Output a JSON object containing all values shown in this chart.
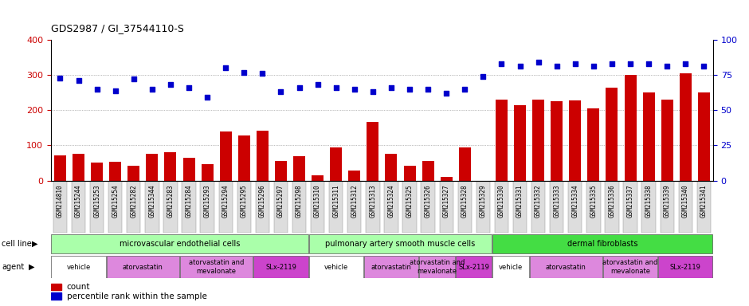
{
  "title": "GDS2987 / GI_37544110-S",
  "samples": [
    "GSM214810",
    "GSM215244",
    "GSM215253",
    "GSM215254",
    "GSM215282",
    "GSM215344",
    "GSM215283",
    "GSM215284",
    "GSM215293",
    "GSM215294",
    "GSM215295",
    "GSM215296",
    "GSM215297",
    "GSM215298",
    "GSM215310",
    "GSM215311",
    "GSM215312",
    "GSM215313",
    "GSM215324",
    "GSM215325",
    "GSM215326",
    "GSM215327",
    "GSM215328",
    "GSM215329",
    "GSM215330",
    "GSM215331",
    "GSM215332",
    "GSM215333",
    "GSM215334",
    "GSM215335",
    "GSM215336",
    "GSM215337",
    "GSM215338",
    "GSM215339",
    "GSM215340",
    "GSM215341"
  ],
  "counts": [
    72,
    75,
    50,
    53,
    42,
    75,
    80,
    65,
    47,
    140,
    128,
    142,
    55,
    70,
    15,
    93,
    28,
    167,
    75,
    43,
    55,
    10,
    95,
    0,
    230,
    215,
    230,
    225,
    228,
    205,
    265,
    300,
    250,
    230,
    305,
    250
  ],
  "percentile_ranks_pct": [
    73,
    71,
    65,
    64,
    72,
    65,
    68,
    66,
    59,
    80,
    77,
    76,
    63,
    66,
    68,
    66,
    65,
    63,
    66,
    65,
    65,
    62,
    65,
    74,
    83,
    81,
    84,
    81,
    83,
    81,
    83,
    83,
    83,
    81,
    83,
    81
  ],
  "cell_line_groups": [
    {
      "label": "microvascular endothelial cells",
      "start": 0,
      "end": 14,
      "color": "#AAFFAA"
    },
    {
      "label": "pulmonary artery smooth muscle cells",
      "start": 14,
      "end": 24,
      "color": "#AAFFAA"
    },
    {
      "label": "dermal fibroblasts",
      "start": 24,
      "end": 36,
      "color": "#44DD44"
    }
  ],
  "agent_groups": [
    {
      "label": "vehicle",
      "start": 0,
      "end": 3,
      "color": "#FFFFFF"
    },
    {
      "label": "atorvastatin",
      "start": 3,
      "end": 7,
      "color": "#DD88DD"
    },
    {
      "label": "atorvastatin and\nmevalonate",
      "start": 7,
      "end": 11,
      "color": "#DD88DD"
    },
    {
      "label": "SLx-2119",
      "start": 11,
      "end": 14,
      "color": "#CC44CC"
    },
    {
      "label": "vehicle",
      "start": 14,
      "end": 17,
      "color": "#FFFFFF"
    },
    {
      "label": "atorvastatin",
      "start": 17,
      "end": 20,
      "color": "#DD88DD"
    },
    {
      "label": "atorvastatin and\nmevalonate",
      "start": 20,
      "end": 22,
      "color": "#DD88DD"
    },
    {
      "label": "SLx-2119",
      "start": 22,
      "end": 24,
      "color": "#CC44CC"
    },
    {
      "label": "vehicle",
      "start": 24,
      "end": 26,
      "color": "#FFFFFF"
    },
    {
      "label": "atorvastatin",
      "start": 26,
      "end": 30,
      "color": "#DD88DD"
    },
    {
      "label": "atorvastatin and\nmevalonate",
      "start": 30,
      "end": 33,
      "color": "#DD88DD"
    },
    {
      "label": "SLx-2119",
      "start": 33,
      "end": 36,
      "color": "#CC44CC"
    }
  ],
  "bar_color": "#CC0000",
  "dot_color": "#0000CC",
  "ylim_left": [
    0,
    400
  ],
  "ylim_right": [
    0,
    100
  ],
  "yticks_left": [
    0,
    100,
    200,
    300,
    400
  ],
  "yticks_right": [
    0,
    25,
    50,
    75,
    100
  ],
  "grid_values": [
    100,
    200,
    300
  ]
}
